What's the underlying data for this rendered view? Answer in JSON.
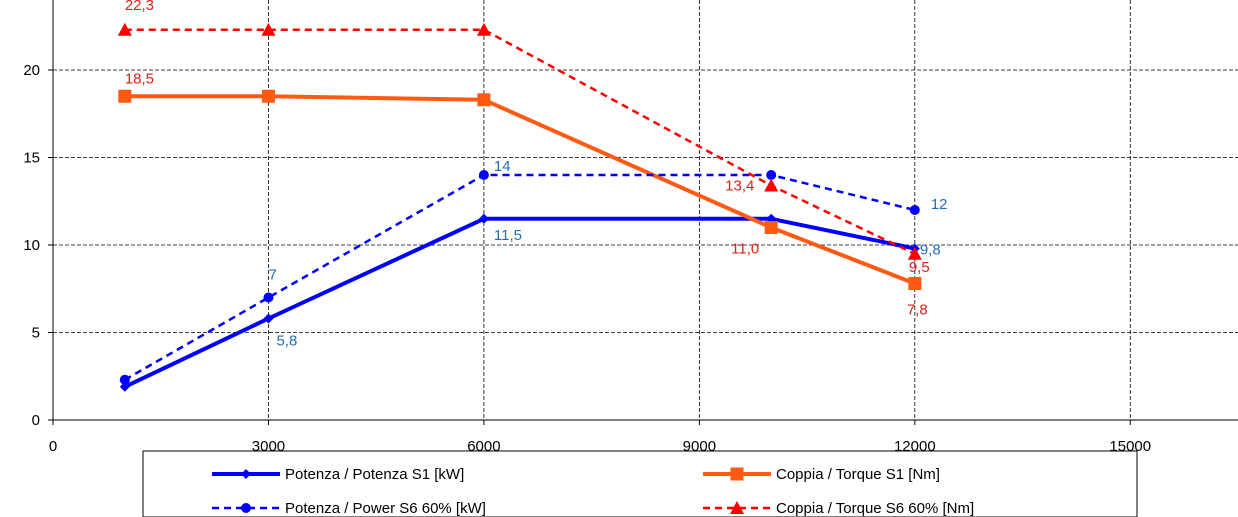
{
  "chart_data": {
    "type": "line",
    "title": "",
    "xlabel": "",
    "ylabel": "",
    "xlim": [
      0,
      16500
    ],
    "ylim": [
      0,
      24
    ],
    "x_ticks": [
      0,
      3000,
      6000,
      9000,
      12000,
      15000
    ],
    "x_tick_labels": [
      "0",
      "3000",
      "6000",
      "9000",
      "12000",
      "15000"
    ],
    "y_ticks": [
      0,
      5,
      10,
      15,
      20
    ],
    "y_tick_labels": [
      "0",
      "5",
      "10",
      "15",
      "20"
    ],
    "grid": true,
    "legend_position": "bottom",
    "series": [
      {
        "name": "Potenza / Potenza S1 [kW]",
        "color": "#0000FF",
        "line_style": "solid",
        "marker": "diamond",
        "x": [
          1000,
          3000,
          6000,
          10000,
          12000
        ],
        "y": [
          1.9,
          5.8,
          11.5,
          11.5,
          9.8
        ],
        "labels": [
          "",
          "5,8",
          "11,5",
          "",
          "9,8"
        ],
        "label_color": "#1F6FB4"
      },
      {
        "name": "Coppia / Torque S1 [Nm]",
        "color": "#FF5A14",
        "line_style": "solid",
        "marker": "square",
        "x": [
          1000,
          3000,
          6000,
          10000,
          12000
        ],
        "y": [
          18.5,
          18.5,
          18.3,
          11.0,
          7.8
        ],
        "labels": [
          "18,5",
          "",
          "",
          "11,0",
          "7,8"
        ],
        "label_color": "#E0201A"
      },
      {
        "name": "Potenza / Power S6 60% [kW]",
        "color": "#0000FF",
        "line_style": "dashed",
        "marker": "circle",
        "x": [
          1000,
          3000,
          6000,
          10000,
          12000
        ],
        "y": [
          2.3,
          7,
          14,
          14,
          12
        ],
        "labels": [
          "",
          "7",
          "14",
          "",
          "12"
        ],
        "label_color": "#1F6FB4"
      },
      {
        "name": "Coppia / Torque S6 60% [Nm]",
        "color": "#FF0000",
        "line_style": "dashed",
        "marker": "triangle",
        "x": [
          1000,
          3000,
          6000,
          10000,
          12000
        ],
        "y": [
          22.3,
          22.3,
          22.3,
          13.4,
          9.5
        ],
        "labels": [
          "22,3",
          "",
          "",
          "13,4",
          "9,5"
        ],
        "label_color": "#E0201A"
      }
    ]
  }
}
